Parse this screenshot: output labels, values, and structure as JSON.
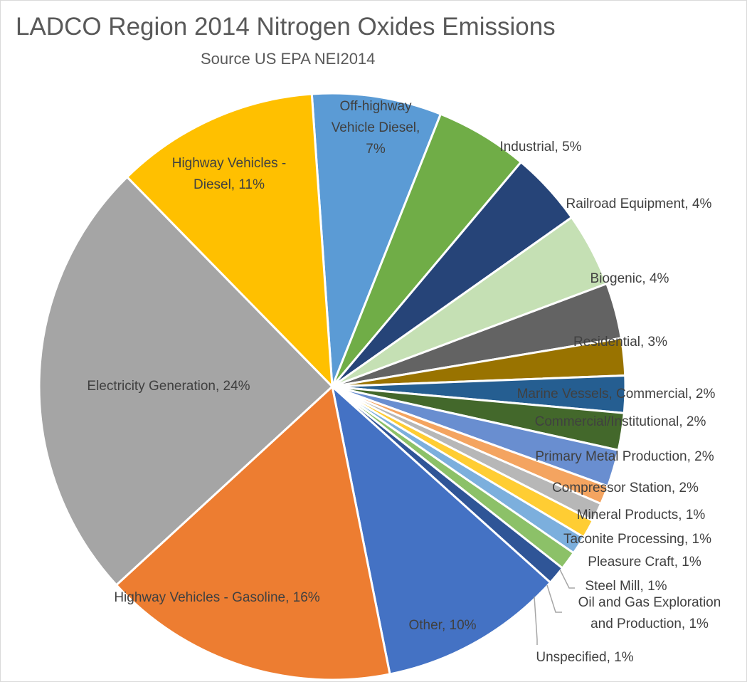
{
  "chart_data": {
    "type": "pie",
    "title": "LADCO Region 2014 Nitrogen Oxides Emissions",
    "subtitle": "Source US EPA NEI2014",
    "start_angle_deg": -4,
    "slices": [
      {
        "label": "Off-highway Vehicle Diesel",
        "value": 7,
        "color": "#5b9bd5",
        "lines": [
          "Off-highway",
          "Vehicle Diesel,",
          "7%"
        ]
      },
      {
        "label": "Industrial",
        "value": 5,
        "color": "#70ad47",
        "lines": [
          "Industrial, 5%"
        ]
      },
      {
        "label": "Railroad Equipment",
        "value": 4,
        "color": "#264478",
        "lines": [
          "Railroad Equipment, 4%"
        ]
      },
      {
        "label": "Biogenic",
        "value": 4,
        "color": "#c5e0b4",
        "lines": [
          "Biogenic, 4%"
        ]
      },
      {
        "label": "Residential",
        "value": 3,
        "color": "#636363",
        "lines": [
          "Residential, 3%"
        ]
      },
      {
        "label": "Marine Vessels, Commercial",
        "value": 2,
        "color": "#997300",
        "lines": [
          "Marine Vessels, Commercial, 2%"
        ]
      },
      {
        "label": "Commercial/Institutional",
        "value": 2,
        "color": "#255e91",
        "lines": [
          "Commercial/Institutional, 2%"
        ]
      },
      {
        "label": "Primary Metal Production",
        "value": 2,
        "color": "#43682b",
        "lines": [
          "Primary Metal Production, 2%"
        ]
      },
      {
        "label": "Compressor Station",
        "value": 2,
        "color": "#698ed0",
        "lines": [
          "Compressor Station, 2%"
        ]
      },
      {
        "label": "Mineral Products",
        "value": 1,
        "color": "#f4a460",
        "lines": [
          "Mineral Products, 1%"
        ]
      },
      {
        "label": "Taconite Processing",
        "value": 1,
        "color": "#b7b7b7",
        "lines": [
          "Taconite Processing, 1%"
        ]
      },
      {
        "label": "Pleasure Craft",
        "value": 1,
        "color": "#ffcd33",
        "lines": [
          "Pleasure Craft, 1%"
        ]
      },
      {
        "label": "Steel Mill",
        "value": 1,
        "color": "#7cafdd",
        "lines": [
          "Steel Mill, 1%"
        ]
      },
      {
        "label": "Oil and Gas Exploration and Production",
        "value": 1,
        "color": "#8cc168",
        "lines": [
          "Oil and Gas Exploration",
          "and Production, 1%"
        ]
      },
      {
        "label": "Unspecified",
        "value": 1,
        "color": "#2f5597",
        "lines": [
          "Unspecified, 1%"
        ]
      },
      {
        "label": "Other",
        "value": 10,
        "color": "#4472c4",
        "lines": [
          "Other, 10%"
        ]
      },
      {
        "label": "Highway Vehicles - Gasoline",
        "value": 16,
        "color": "#ed7d31",
        "lines": [
          "Highway Vehicles - Gasoline, 16%"
        ]
      },
      {
        "label": "Electricity Generation",
        "value": 24,
        "color": "#a5a5a5",
        "lines": [
          "Electricity Generation, 24%"
        ]
      },
      {
        "label": "Highway Vehicles - Diesel",
        "value": 11,
        "color": "#ffc000",
        "lines": [
          "Highway Vehicles -",
          "Diesel, 11%"
        ]
      }
    ]
  }
}
